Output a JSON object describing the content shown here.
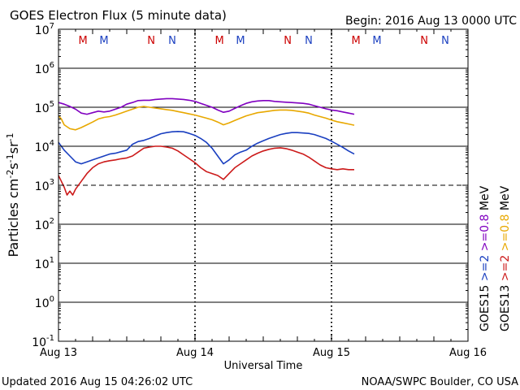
{
  "title": "GOES Electron Flux (5 minute data)",
  "begin": "Begin: 2016 Aug 13 0000 UTC",
  "updated": "Updated 2016 Aug 15 04:26:02 UTC",
  "credit": "NOAA/SWPC Boulder, CO USA",
  "chart_data": {
    "type": "line",
    "title": "GOES Electron Flux (5 minute data)",
    "xlabel": "Universal Time",
    "ylabel": "Particles cm-2s-1sr-1",
    "y_scale": "log",
    "ylim_exp": [
      -1,
      7
    ],
    "y_ticks": [
      {
        "exp": 7,
        "base": "10",
        "sup": "7"
      },
      {
        "exp": 6,
        "base": "10",
        "sup": "6"
      },
      {
        "exp": 5,
        "base": "10",
        "sup": "5"
      },
      {
        "exp": 4,
        "base": "10",
        "sup": "4"
      },
      {
        "exp": 3,
        "base": "10",
        "sup": "3"
      },
      {
        "exp": 2,
        "base": "10",
        "sup": "2"
      },
      {
        "exp": 1,
        "base": "10",
        "sup": "1"
      },
      {
        "exp": 0,
        "base": "10",
        "sup": "0"
      },
      {
        "exp": -1,
        "base": "10",
        "sup": "-1"
      }
    ],
    "x_range_hours": [
      0,
      72
    ],
    "x_ticks": [
      {
        "hour": 0,
        "label": "Aug 13"
      },
      {
        "hour": 24,
        "label": "Aug 14"
      },
      {
        "hour": 48,
        "label": "Aug 15"
      },
      {
        "hour": 72,
        "label": "Aug 16"
      }
    ],
    "threshold_exp": 3,
    "markers": [
      {
        "hour": 4.3,
        "label": "M",
        "color": "#cc0000"
      },
      {
        "hour": 8.0,
        "label": "M",
        "color": "#1a3fc0"
      },
      {
        "hour": 16.3,
        "label": "N",
        "color": "#cc0000"
      },
      {
        "hour": 20.0,
        "label": "N",
        "color": "#1a3fc0"
      },
      {
        "hour": 28.3,
        "label": "M",
        "color": "#cc0000"
      },
      {
        "hour": 32.0,
        "label": "M",
        "color": "#1a3fc0"
      },
      {
        "hour": 40.3,
        "label": "N",
        "color": "#cc0000"
      },
      {
        "hour": 44.0,
        "label": "N",
        "color": "#1a3fc0"
      },
      {
        "hour": 52.3,
        "label": "M",
        "color": "#cc0000"
      },
      {
        "hour": 56.0,
        "label": "M",
        "color": "#1a3fc0"
      },
      {
        "hour": 64.3,
        "label": "N",
        "color": "#cc0000"
      },
      {
        "hour": 68.0,
        "label": "N",
        "color": "#1a3fc0"
      }
    ],
    "series": [
      {
        "name": "GOES15 >=0.8 MeV",
        "color": "#8000c0",
        "points": [
          [
            0,
            5.12
          ],
          [
            1,
            5.08
          ],
          [
            2,
            5.02
          ],
          [
            3,
            4.95
          ],
          [
            4,
            4.85
          ],
          [
            5,
            4.82
          ],
          [
            6,
            4.86
          ],
          [
            7,
            4.9
          ],
          [
            8,
            4.88
          ],
          [
            9,
            4.9
          ],
          [
            10,
            4.95
          ],
          [
            11,
            5.0
          ],
          [
            12,
            5.08
          ],
          [
            13,
            5.12
          ],
          [
            14,
            5.17
          ],
          [
            15,
            5.18
          ],
          [
            16,
            5.18
          ],
          [
            17,
            5.2
          ],
          [
            18,
            5.21
          ],
          [
            19,
            5.22
          ],
          [
            20,
            5.22
          ],
          [
            21,
            5.21
          ],
          [
            22,
            5.2
          ],
          [
            23,
            5.18
          ],
          [
            24,
            5.15
          ],
          [
            25,
            5.1
          ],
          [
            26,
            5.05
          ],
          [
            27,
            5.0
          ],
          [
            28,
            4.93
          ],
          [
            29,
            4.87
          ],
          [
            30,
            4.9
          ],
          [
            31,
            4.97
          ],
          [
            32,
            5.04
          ],
          [
            33,
            5.1
          ],
          [
            34,
            5.14
          ],
          [
            35,
            5.16
          ],
          [
            36,
            5.17
          ],
          [
            37,
            5.17
          ],
          [
            38,
            5.15
          ],
          [
            39,
            5.14
          ],
          [
            40,
            5.13
          ],
          [
            41,
            5.12
          ],
          [
            42,
            5.11
          ],
          [
            43,
            5.1
          ],
          [
            44,
            5.08
          ],
          [
            45,
            5.04
          ],
          [
            46,
            5.0
          ],
          [
            47,
            4.96
          ],
          [
            48,
            4.93
          ],
          [
            49,
            4.91
          ],
          [
            50,
            4.88
          ],
          [
            51,
            4.85
          ],
          [
            52,
            4.82
          ]
        ]
      },
      {
        "name": "GOES13 >=0.8 MeV",
        "color": "#e8a800",
        "points": [
          [
            0,
            4.78
          ],
          [
            0.5,
            4.7
          ],
          [
            1,
            4.55
          ],
          [
            2,
            4.45
          ],
          [
            3,
            4.42
          ],
          [
            4,
            4.48
          ],
          [
            5,
            4.55
          ],
          [
            6,
            4.62
          ],
          [
            7,
            4.7
          ],
          [
            8,
            4.74
          ],
          [
            9,
            4.76
          ],
          [
            10,
            4.8
          ],
          [
            11,
            4.85
          ],
          [
            12,
            4.9
          ],
          [
            13,
            4.95
          ],
          [
            14,
            5.0
          ],
          [
            15,
            5.02
          ],
          [
            16,
            5.0
          ],
          [
            17,
            4.98
          ],
          [
            18,
            4.96
          ],
          [
            19,
            4.94
          ],
          [
            20,
            4.92
          ],
          [
            21,
            4.89
          ],
          [
            22,
            4.86
          ],
          [
            23,
            4.83
          ],
          [
            24,
            4.8
          ],
          [
            25,
            4.76
          ],
          [
            26,
            4.72
          ],
          [
            27,
            4.68
          ],
          [
            28,
            4.62
          ],
          [
            29,
            4.55
          ],
          [
            30,
            4.6
          ],
          [
            31,
            4.66
          ],
          [
            32,
            4.72
          ],
          [
            33,
            4.78
          ],
          [
            34,
            4.82
          ],
          [
            35,
            4.86
          ],
          [
            36,
            4.88
          ],
          [
            37,
            4.9
          ],
          [
            38,
            4.92
          ],
          [
            39,
            4.93
          ],
          [
            40,
            4.93
          ],
          [
            41,
            4.92
          ],
          [
            42,
            4.9
          ],
          [
            43,
            4.88
          ],
          [
            44,
            4.85
          ],
          [
            45,
            4.8
          ],
          [
            46,
            4.76
          ],
          [
            47,
            4.72
          ],
          [
            48,
            4.67
          ],
          [
            49,
            4.63
          ],
          [
            50,
            4.6
          ],
          [
            51,
            4.57
          ],
          [
            52,
            4.54
          ]
        ]
      },
      {
        "name": "GOES15 >=2 MeV",
        "color": "#1a3fc0",
        "points": [
          [
            0,
            4.1
          ],
          [
            1,
            3.9
          ],
          [
            2,
            3.75
          ],
          [
            3,
            3.6
          ],
          [
            4,
            3.55
          ],
          [
            5,
            3.6
          ],
          [
            6,
            3.65
          ],
          [
            7,
            3.7
          ],
          [
            8,
            3.75
          ],
          [
            9,
            3.8
          ],
          [
            10,
            3.82
          ],
          [
            11,
            3.86
          ],
          [
            12,
            3.9
          ],
          [
            13,
            4.05
          ],
          [
            14,
            4.12
          ],
          [
            15,
            4.15
          ],
          [
            16,
            4.2
          ],
          [
            17,
            4.26
          ],
          [
            18,
            4.32
          ],
          [
            19,
            4.35
          ],
          [
            20,
            4.37
          ],
          [
            21,
            4.38
          ],
          [
            22,
            4.37
          ],
          [
            23,
            4.33
          ],
          [
            24,
            4.28
          ],
          [
            25,
            4.2
          ],
          [
            26,
            4.1
          ],
          [
            27,
            3.95
          ],
          [
            28,
            3.75
          ],
          [
            29,
            3.55
          ],
          [
            30,
            3.65
          ],
          [
            31,
            3.78
          ],
          [
            32,
            3.85
          ],
          [
            33,
            3.9
          ],
          [
            34,
            4.0
          ],
          [
            35,
            4.08
          ],
          [
            36,
            4.14
          ],
          [
            37,
            4.2
          ],
          [
            38,
            4.25
          ],
          [
            39,
            4.3
          ],
          [
            40,
            4.33
          ],
          [
            41,
            4.35
          ],
          [
            42,
            4.35
          ],
          [
            43,
            4.34
          ],
          [
            44,
            4.33
          ],
          [
            45,
            4.3
          ],
          [
            46,
            4.25
          ],
          [
            47,
            4.2
          ],
          [
            48,
            4.13
          ],
          [
            49,
            4.05
          ],
          [
            50,
            3.97
          ],
          [
            51,
            3.88
          ],
          [
            52,
            3.8
          ]
        ]
      },
      {
        "name": "GOES13 >=2 MeV",
        "color": "#cc1a1a",
        "points": [
          [
            0,
            3.25
          ],
          [
            0.5,
            3.1
          ],
          [
            1,
            2.95
          ],
          [
            1.5,
            2.75
          ],
          [
            2,
            2.85
          ],
          [
            2.5,
            2.75
          ],
          [
            3,
            2.9
          ],
          [
            4,
            3.1
          ],
          [
            5,
            3.3
          ],
          [
            6,
            3.45
          ],
          [
            7,
            3.55
          ],
          [
            8,
            3.6
          ],
          [
            9,
            3.63
          ],
          [
            10,
            3.65
          ],
          [
            11,
            3.68
          ],
          [
            12,
            3.7
          ],
          [
            13,
            3.75
          ],
          [
            14,
            3.85
          ],
          [
            15,
            3.95
          ],
          [
            16,
            3.98
          ],
          [
            17,
            4.0
          ],
          [
            18,
            4.0
          ],
          [
            19,
            3.98
          ],
          [
            20,
            3.95
          ],
          [
            21,
            3.88
          ],
          [
            22,
            3.78
          ],
          [
            23,
            3.68
          ],
          [
            24,
            3.58
          ],
          [
            25,
            3.45
          ],
          [
            26,
            3.35
          ],
          [
            27,
            3.3
          ],
          [
            28,
            3.25
          ],
          [
            29,
            3.15
          ],
          [
            30,
            3.3
          ],
          [
            31,
            3.45
          ],
          [
            32,
            3.55
          ],
          [
            33,
            3.65
          ],
          [
            34,
            3.75
          ],
          [
            35,
            3.82
          ],
          [
            36,
            3.88
          ],
          [
            37,
            3.92
          ],
          [
            38,
            3.95
          ],
          [
            39,
            3.96
          ],
          [
            40,
            3.94
          ],
          [
            41,
            3.9
          ],
          [
            42,
            3.85
          ],
          [
            43,
            3.8
          ],
          [
            44,
            3.72
          ],
          [
            45,
            3.62
          ],
          [
            46,
            3.52
          ],
          [
            47,
            3.45
          ],
          [
            48,
            3.42
          ],
          [
            49,
            3.4
          ],
          [
            50,
            3.42
          ],
          [
            51,
            3.4
          ],
          [
            52,
            3.4
          ]
        ]
      }
    ],
    "right_legend": [
      {
        "text": "GOES15",
        "color": "#000000"
      },
      {
        "text": ">=2",
        "color": "#1a3fc0"
      },
      {
        "text": ">=0.8",
        "color": "#8000c0"
      },
      {
        "text": "MeV",
        "color": "#000000"
      },
      {
        "text": "GOES13",
        "color": "#000000"
      },
      {
        "text": ">=2",
        "color": "#cc1a1a"
      },
      {
        "text": ">=0.8",
        "color": "#e8a800"
      },
      {
        "text": "MeV",
        "color": "#000000"
      }
    ]
  }
}
